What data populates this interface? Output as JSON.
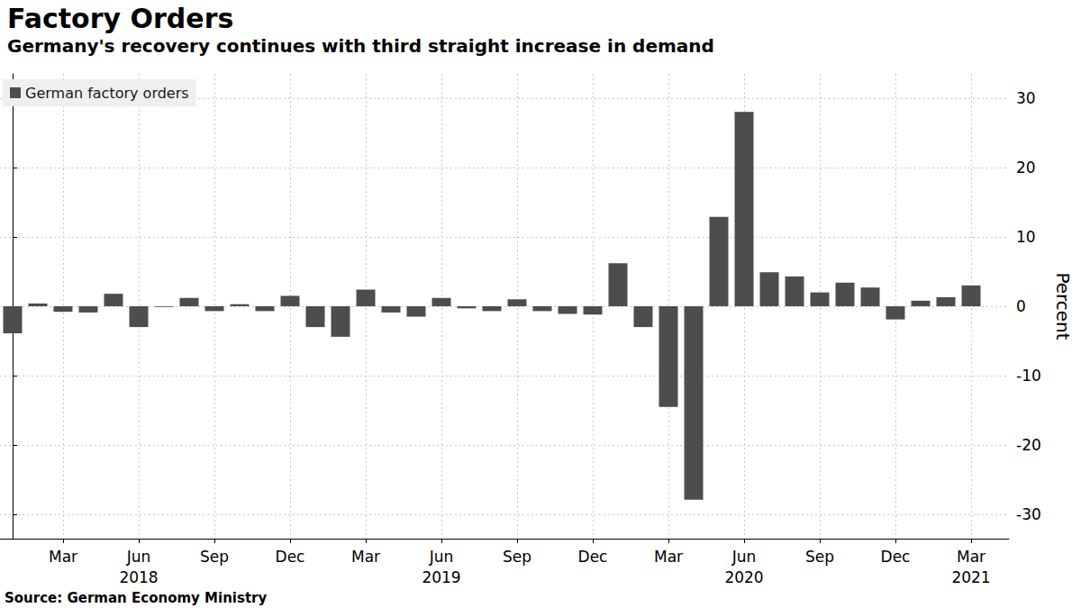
{
  "chart_data": {
    "type": "bar",
    "title": "Factory Orders",
    "subtitle": "Germany's recovery continues with third straight increase in demand",
    "source": "Source: German Economy Ministry",
    "y_label": "Percent",
    "categories": [
      null,
      null,
      "Mar",
      null,
      null,
      "Jun\n2018",
      null,
      null,
      "Sep",
      null,
      null,
      "Dec",
      null,
      null,
      "Mar",
      null,
      null,
      "Jun\n2019",
      null,
      null,
      "Sep",
      null,
      null,
      "Dec",
      null,
      null,
      "Mar",
      null,
      null,
      "Jun\n2020",
      null,
      null,
      "Sep",
      null,
      null,
      "Dec",
      null,
      null,
      "Mar\n2021"
    ],
    "series": [
      {
        "name": "German factory orders",
        "color": "#4d4d4d",
        "values": [
          -3.9,
          0.4,
          -0.8,
          -0.9,
          1.8,
          -3.0,
          -0.1,
          1.2,
          -0.7,
          0.3,
          -0.7,
          1.5,
          -3.0,
          -4.4,
          2.4,
          -0.9,
          -1.5,
          1.2,
          -0.3,
          -0.7,
          1.0,
          -0.7,
          -1.1,
          -1.2,
          6.2,
          -3.0,
          -14.5,
          -27.9,
          12.9,
          28.0,
          4.9,
          4.3,
          2.0,
          3.4,
          2.7,
          -1.9,
          0.8,
          1.3,
          3.0
        ]
      }
    ],
    "ylim": [
      -33.5,
      33.5
    ],
    "yticks": [
      -30,
      -20,
      -10,
      0,
      10,
      20,
      30
    ],
    "grid": true,
    "legend": "upper left"
  }
}
